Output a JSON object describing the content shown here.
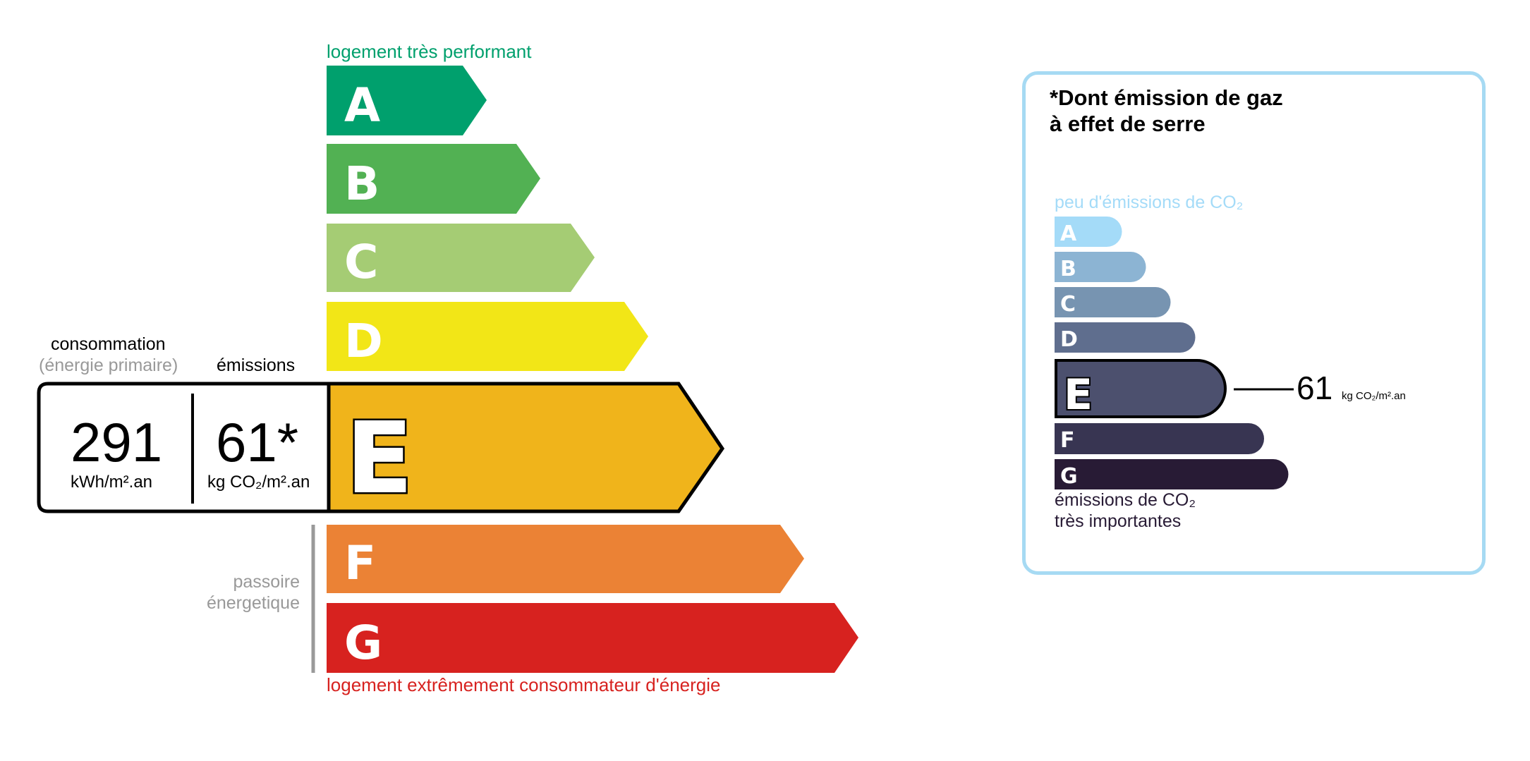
{
  "energy": {
    "top_label": "logement très performant",
    "bottom_label": "logement extrêmement consommateur d'énergie",
    "passoire_label_1": "passoire",
    "passoire_label_2": "énergetique",
    "current_grade": "E",
    "grades": [
      {
        "letter": "A",
        "color": "#00a06d"
      },
      {
        "letter": "B",
        "color": "#52b153"
      },
      {
        "letter": "C",
        "color": "#a5cc74"
      },
      {
        "letter": "D",
        "color": "#f2e617"
      },
      {
        "letter": "E",
        "color": "#f0b41b"
      },
      {
        "letter": "F",
        "color": "#eb8235"
      },
      {
        "letter": "G",
        "color": "#d7221f"
      }
    ],
    "consumption_header_1": "consommation",
    "consumption_header_2": "(énergie primaire)",
    "emissions_header": "émissions",
    "consumption_value": "291",
    "consumption_unit": "kWh/m².an",
    "emissions_value": "61*",
    "emissions_unit": "kg CO₂/m².an"
  },
  "ghg": {
    "title_1": "*Dont émission de gaz",
    "title_2": "à effet de serre",
    "top_label": "peu d'émissions de CO₂",
    "bottom_label_1": "émissions de CO₂",
    "bottom_label_2": "très importantes",
    "current_grade": "E",
    "value": "61",
    "unit": "kg CO₂/m².an",
    "border_color": "#a6daf3",
    "grades": [
      {
        "letter": "A",
        "color": "#a4dbf8"
      },
      {
        "letter": "B",
        "color": "#8cb4d3"
      },
      {
        "letter": "C",
        "color": "#7794b1"
      },
      {
        "letter": "D",
        "color": "#5f6e8e"
      },
      {
        "letter": "E",
        "color": "#4c506e"
      },
      {
        "letter": "F",
        "color": "#383552"
      },
      {
        "letter": "G",
        "color": "#281b35"
      }
    ]
  }
}
